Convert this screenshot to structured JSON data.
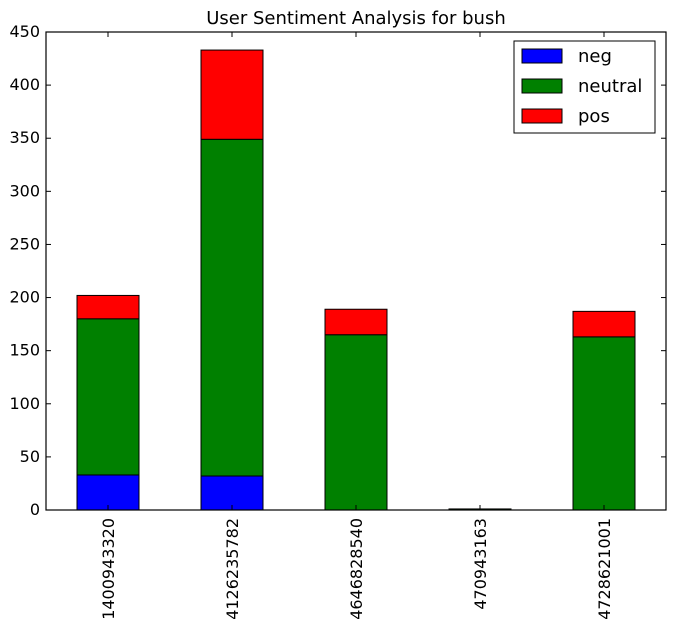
{
  "chart_data": {
    "type": "bar",
    "stacked": true,
    "title": "User Sentiment Analysis for bush",
    "xlabel": "",
    "ylabel": "",
    "categories": [
      "1400943320",
      "4126235782",
      "4646828540",
      "470943163",
      "4728621001"
    ],
    "series": [
      {
        "name": "neg",
        "color": "#0000ff",
        "values": [
          33,
          32,
          0,
          0,
          0
        ]
      },
      {
        "name": "neutral",
        "color": "#008000",
        "values": [
          147,
          317,
          165,
          1,
          163
        ]
      },
      {
        "name": "pos",
        "color": "#ff0000",
        "values": [
          22,
          84,
          24,
          0,
          24
        ]
      }
    ],
    "ylim": [
      0,
      450
    ],
    "yticks": [
      0,
      50,
      100,
      150,
      200,
      250,
      300,
      350,
      400,
      450
    ],
    "ytick_labels": [
      "0",
      "50",
      "100",
      "150",
      "200",
      "250",
      "300",
      "350",
      "400",
      "450"
    ],
    "grid": false,
    "legend_position": "top-right"
  }
}
